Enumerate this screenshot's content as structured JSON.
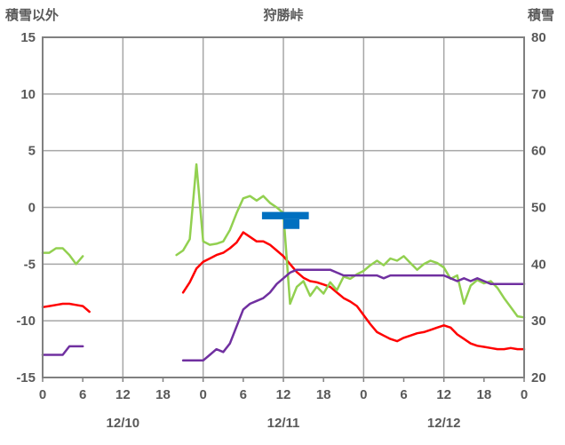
{
  "header": {
    "left_axis_title": "積雪以外",
    "station_name": "狩勝峠",
    "right_axis_title": "積雪"
  },
  "chart_data": {
    "type": "line",
    "title": "狩勝峠",
    "x_axis": {
      "unit": "hour",
      "range_hours": [
        0,
        72
      ],
      "tick_interval_hours": 6,
      "tick_labels": [
        "0",
        "6",
        "12",
        "18",
        "0",
        "6",
        "12",
        "18",
        "0",
        "6",
        "12",
        "18",
        "0"
      ],
      "date_labels": [
        {
          "text": "12/10",
          "center_hour": 12
        },
        {
          "text": "12/11",
          "center_hour": 36
        },
        {
          "text": "12/12",
          "center_hour": 60
        }
      ],
      "grid_interval_hours": 12
    },
    "left_axis": {
      "title": "積雪以外",
      "min": -15,
      "max": 15,
      "tick_step": 5,
      "tick_labels": [
        "15",
        "10",
        "5",
        "0",
        "-5",
        "-10",
        "-15"
      ]
    },
    "right_axis": {
      "title": "積雪",
      "min": 20,
      "max": 80,
      "tick_step": 10,
      "tick_labels": [
        "80",
        "70",
        "60",
        "50",
        "40",
        "30",
        "20"
      ]
    },
    "series": [
      {
        "id": "red-line",
        "axis": "left",
        "color": "#ff0000",
        "stroke_width": 2.5,
        "values_by_hour": [
          -8.8,
          -8.7,
          -8.6,
          -8.5,
          -8.5,
          -8.6,
          -8.7,
          -9.2,
          null,
          null,
          null,
          null,
          null,
          null,
          null,
          null,
          null,
          null,
          null,
          null,
          null,
          -7.5,
          -6.6,
          -5.4,
          -4.8,
          -4.5,
          -4.2,
          -4.0,
          -3.6,
          -3.1,
          -2.2,
          -2.6,
          -3.0,
          -3.0,
          -3.3,
          -3.8,
          -4.3,
          -5.0,
          -5.7,
          -6.2,
          -6.5,
          -6.6,
          -6.8,
          -7.0,
          -7.5,
          -8.0,
          -8.3,
          -8.7,
          -9.5,
          -10.3,
          -11.0,
          -11.3,
          -11.6,
          -11.8,
          -11.5,
          -11.3,
          -11.1,
          -11.0,
          -10.8,
          -10.6,
          -10.4,
          -10.6,
          -11.2,
          -11.6,
          -12.0,
          -12.2,
          -12.3,
          -12.4,
          -12.5,
          -12.5,
          -12.4,
          -12.5,
          -12.5
        ]
      },
      {
        "id": "green-line",
        "axis": "left",
        "color": "#92d050",
        "stroke_width": 2.5,
        "values_by_hour": [
          -4.0,
          -4.0,
          -3.6,
          -3.6,
          -4.2,
          -5.0,
          -4.3,
          null,
          null,
          null,
          null,
          null,
          null,
          null,
          null,
          null,
          null,
          null,
          null,
          null,
          -4.2,
          -3.8,
          -2.8,
          3.8,
          -3.0,
          -3.3,
          -3.2,
          -3.0,
          -2.0,
          -0.5,
          0.8,
          1.0,
          0.6,
          1.0,
          0.4,
          0.0,
          -0.5,
          -8.5,
          -7.0,
          -6.5,
          -7.8,
          -7.0,
          -7.6,
          -6.6,
          -7.3,
          -6.1,
          -6.3,
          -5.9,
          -5.6,
          -5.1,
          -4.7,
          -5.1,
          -4.5,
          -4.7,
          -4.3,
          -4.9,
          -5.5,
          -5.0,
          -4.7,
          -4.9,
          -5.3,
          -6.3,
          -6.0,
          -8.5,
          -6.9,
          -6.4,
          -6.7,
          -6.5,
          -7.1,
          -8.0,
          -8.8,
          -9.6,
          -9.7
        ]
      },
      {
        "id": "purple-line",
        "axis": "right",
        "color": "#7030a0",
        "stroke_width": 2.5,
        "values_by_hour": [
          24,
          24,
          24,
          24,
          25.5,
          25.5,
          25.5,
          null,
          null,
          null,
          null,
          null,
          null,
          null,
          null,
          null,
          null,
          null,
          null,
          null,
          null,
          23,
          23,
          23,
          23,
          24,
          25,
          24.5,
          26,
          29,
          32,
          33,
          33.5,
          34,
          35,
          36.5,
          37.5,
          38.5,
          39,
          39,
          39,
          39,
          39,
          39,
          38.5,
          38,
          38,
          38,
          38,
          38,
          38,
          37.5,
          38,
          38,
          38,
          38,
          38,
          38,
          38,
          38,
          38,
          37.5,
          37,
          37.5,
          37,
          37.5,
          37,
          36.5,
          36.5,
          36.5,
          36.5,
          36.5,
          36.5
        ]
      }
    ],
    "bars": [
      {
        "id": "blue-bar-upper",
        "axis": "left",
        "color": "#0070c0",
        "start_hour": 32.8,
        "end_hour": 39.8,
        "top": -0.4,
        "bottom": -1.05
      },
      {
        "id": "blue-bar-lower",
        "axis": "left",
        "color": "#0070c0",
        "start_hour": 36.0,
        "end_hour": 38.4,
        "top": -1.05,
        "bottom": -1.9
      }
    ],
    "style": {
      "grid_color": "#a6a6a6",
      "border_color": "#808080",
      "label_color": "#595959",
      "plot_background": "#ffffff"
    }
  }
}
